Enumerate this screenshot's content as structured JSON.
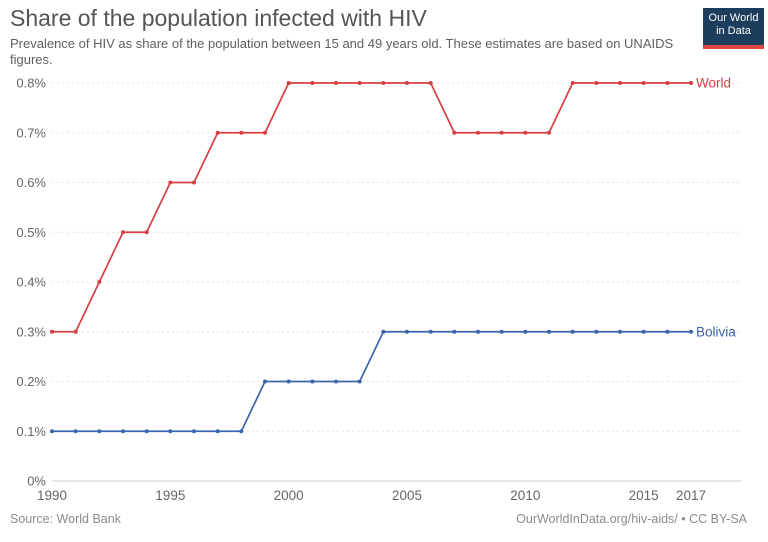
{
  "chart_data": {
    "type": "line",
    "title": "Share of the population infected with HIV",
    "subtitle": "Prevalence of HIV as share of the population between 15 and 49 years old. These estimates are based on UNAIDS figures.",
    "xlabel": "",
    "ylabel": "",
    "x": [
      1990,
      1991,
      1992,
      1993,
      1994,
      1995,
      1996,
      1997,
      1998,
      1999,
      2000,
      2001,
      2002,
      2003,
      2004,
      2005,
      2006,
      2007,
      2008,
      2009,
      2010,
      2011,
      2012,
      2013,
      2014,
      2015,
      2016,
      2017
    ],
    "series": [
      {
        "name": "World",
        "color": "#d73e43",
        "values": [
          0.3,
          0.3,
          0.4,
          0.5,
          0.5,
          0.6,
          0.6,
          0.7,
          0.7,
          0.7,
          0.8,
          0.8,
          0.8,
          0.8,
          0.8,
          0.8,
          0.8,
          0.7,
          0.7,
          0.7,
          0.7,
          0.7,
          0.8,
          0.8,
          0.8,
          0.8,
          0.8,
          0.8
        ]
      },
      {
        "name": "Bolivia",
        "color": "#3b64af",
        "values": [
          0.1,
          0.1,
          0.1,
          0.1,
          0.1,
          0.1,
          0.1,
          0.1,
          0.1,
          0.2,
          0.2,
          0.2,
          0.2,
          0.2,
          0.3,
          0.3,
          0.3,
          0.3,
          0.3,
          0.3,
          0.3,
          0.3,
          0.3,
          0.3,
          0.3,
          0.3,
          0.3,
          0.3
        ]
      }
    ],
    "xticks": [
      {
        "value": 1990,
        "label": "1990"
      },
      {
        "value": 1995,
        "label": "1995"
      },
      {
        "value": 2000,
        "label": "2000"
      },
      {
        "value": 2005,
        "label": "2005"
      },
      {
        "value": 2010,
        "label": "2010"
      },
      {
        "value": 2015,
        "label": "2015"
      },
      {
        "value": 2017,
        "label": "2017"
      }
    ],
    "yticks": [
      {
        "value": 0.0,
        "label": "0%"
      },
      {
        "value": 0.1,
        "label": "0.1%"
      },
      {
        "value": 0.2,
        "label": "0.2%"
      },
      {
        "value": 0.3,
        "label": "0.3%"
      },
      {
        "value": 0.4,
        "label": "0.4%"
      },
      {
        "value": 0.5,
        "label": "0.5%"
      },
      {
        "value": 0.6,
        "label": "0.6%"
      },
      {
        "value": 0.7,
        "label": "0.7%"
      },
      {
        "value": 0.8,
        "label": "0.8%"
      }
    ],
    "xlim": [
      1990,
      2017
    ],
    "ylim": [
      0,
      0.8
    ],
    "grid": "horizontal-dashed",
    "legend_position": "end-of-line-labels"
  },
  "logo": {
    "line1": "Our World",
    "line2": "in Data",
    "bg_color": "#1d3d5c",
    "accent_color": "#e0473c"
  },
  "footer": {
    "source": "Source: World Bank",
    "link": "OurWorldInData.org/hiv-aids/ • CC BY-SA"
  },
  "style_colors": {
    "grid": "#e2e2e2",
    "axis": "#cccccc",
    "tick_text": "#666666"
  }
}
